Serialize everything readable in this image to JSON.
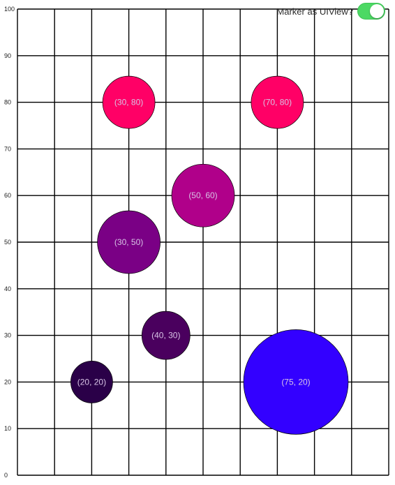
{
  "toggle": {
    "label": "Marker as UIView?",
    "on": true,
    "color": "#4cd964"
  },
  "chart_data": {
    "type": "scatter",
    "title": "",
    "xlabel": "",
    "ylabel": "",
    "xlim": [
      0,
      100
    ],
    "ylim": [
      0,
      100
    ],
    "grid": true,
    "y_ticks": [
      "0",
      "10",
      "20",
      "30",
      "40",
      "50",
      "60",
      "70",
      "80",
      "90",
      "100"
    ],
    "x_ticks": [],
    "points": [
      {
        "x": 20,
        "y": 20,
        "label": "(20, 20)",
        "color": "#2a0048",
        "size": 1
      },
      {
        "x": 40,
        "y": 30,
        "label": "(40, 30)",
        "color": "#4a005e",
        "size": 1.15
      },
      {
        "x": 30,
        "y": 50,
        "label": "(30, 50)",
        "color": "#7a0085",
        "size": 1.5
      },
      {
        "x": 50,
        "y": 60,
        "label": "(50, 60)",
        "color": "#b0008a",
        "size": 1.5
      },
      {
        "x": 30,
        "y": 80,
        "label": "(30, 80)",
        "color": "#ff0066",
        "size": 1.25
      },
      {
        "x": 70,
        "y": 80,
        "label": "(70, 80)",
        "color": "#ff0066",
        "size": 1.25
      },
      {
        "x": 75,
        "y": 20,
        "label": "(75, 20)",
        "color": "#3300ff",
        "size": 2.5
      }
    ]
  }
}
